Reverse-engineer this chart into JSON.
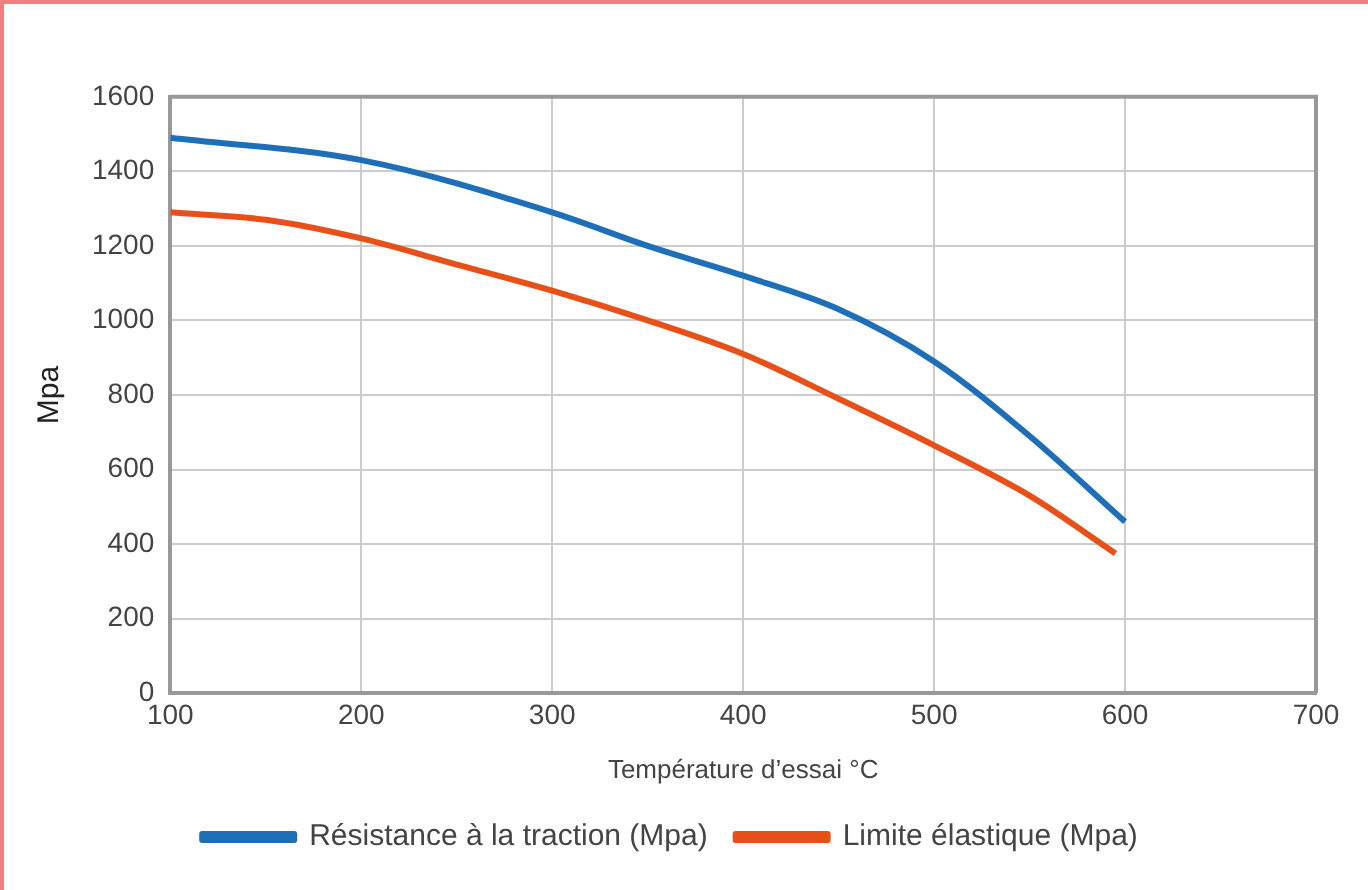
{
  "chart_data": {
    "type": "line",
    "xlabel": "Température d’essai °C",
    "ylabel": "Mpa",
    "xlim": [
      100,
      700
    ],
    "xticks": [
      100,
      200,
      300,
      400,
      500,
      600,
      700
    ],
    "ylim": [
      0,
      1600
    ],
    "yticks": [
      0,
      200,
      400,
      600,
      800,
      1000,
      1200,
      1400,
      1600
    ],
    "grid": true,
    "legend": "bottom",
    "marker": "none",
    "line_style": "solid",
    "series": [
      {
        "name": "Résistance à la traction (Mpa)",
        "color": "#1f6fb8",
        "x": [
          100,
          200,
          300,
          350,
          400,
          450,
          500,
          550,
          600
        ],
        "values": [
          1490,
          1430,
          1290,
          1200,
          1120,
          1030,
          890,
          690,
          460
        ]
      },
      {
        "name": "Limite élastique (Mpa)",
        "color": "#e8501a",
        "x": [
          100,
          150,
          200,
          250,
          300,
          350,
          400,
          450,
          500,
          550,
          595
        ],
        "values": [
          1290,
          1270,
          1220,
          1150,
          1080,
          1000,
          910,
          790,
          665,
          530,
          375
        ]
      }
    ]
  }
}
